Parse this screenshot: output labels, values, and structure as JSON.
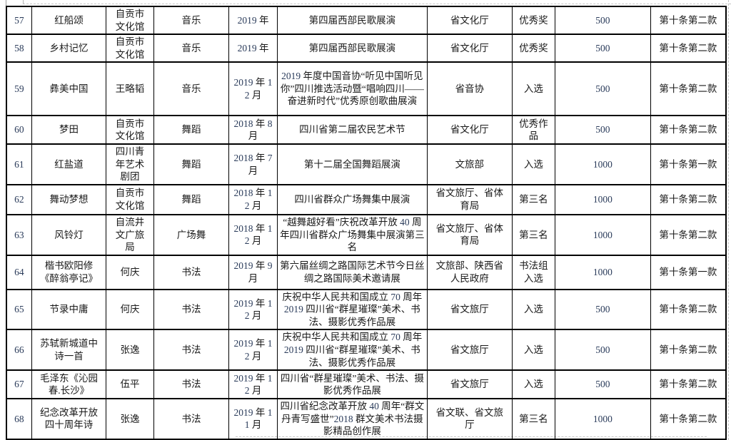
{
  "colors": {
    "table_border": "#000000",
    "text": "#1a1a1a",
    "digit_text": "#2a3b5a",
    "boundary_dash": "#c4c4c4"
  },
  "table": {
    "rows": [
      {
        "no": "57",
        "title": "红船颂",
        "author": "自贡市文化馆",
        "category": "音乐",
        "date": "2019 年",
        "event": "第四届西部民歌展演",
        "organizer": "省文化厅",
        "award": "优秀奖",
        "amount": "500",
        "clause": "第十条第二款"
      },
      {
        "no": "58",
        "title": "乡村记忆",
        "author": "自贡市文化馆",
        "category": "音乐",
        "date": "2019 年",
        "event": "第四届西部民歌展演",
        "organizer": "省文化厅",
        "award": "优秀奖",
        "amount": "500",
        "clause": "第十条第二款"
      },
      {
        "no": "59",
        "title": "彝美中国",
        "author": "王略韬",
        "category": "音乐",
        "date": "2019 年 12 月",
        "event": "2019 年度中国音协“听见中国听见你”四川推选活动暨“唱响四川——奋进新时代”优秀原创歌曲展演",
        "organizer": "省音协",
        "award": "入选",
        "amount": "500",
        "clause": "第十条第二款"
      },
      {
        "no": "60",
        "title": "梦田",
        "author": "自贡市文化馆",
        "category": "舞蹈",
        "date": "2018 年 8 月",
        "event": "四川省第二届农民艺术节",
        "organizer": "省文化厅",
        "award": "优秀作品",
        "amount": "500",
        "clause": "第十条第二款"
      },
      {
        "no": "61",
        "title": "红盐道",
        "author": "四川青年艺术剧团",
        "category": "舞蹈",
        "date": "2018 年 7 月",
        "event": "第十二届全国舞蹈展演",
        "organizer": "文旅部",
        "award": "入选",
        "amount": "1000",
        "clause": "第十条第一款"
      },
      {
        "no": "62",
        "title": "舞动梦想",
        "author": "自贡市文化馆",
        "category": "舞蹈",
        "date": "2018 年 12 月",
        "event": "四川省群众广场舞集中展演",
        "organizer": "省文旅厅、省体育局",
        "award": "第三名",
        "amount": "1000",
        "clause": "第十条第二款"
      },
      {
        "no": "63",
        "title": "风铃灯",
        "author": "自流井文广旅局",
        "category": "广场舞",
        "date": "2018 年 12 月",
        "event": "“越舞越好看”庆祝改革开放 40 周年四川省群众广场舞集中展演第三名",
        "organizer": "省文旅厅、省体育局",
        "award": "第三名",
        "amount": "1000",
        "clause": "第十条第二款"
      },
      {
        "no": "64",
        "title": "楷书欧阳修《醉翁亭记》",
        "author": "何庆",
        "category": "书法",
        "date": "2019 年 9 月",
        "event": "第六届丝绸之路国际艺术节今日丝绸之路国际美术邀请展",
        "organizer": "文旅部、陕西省人民政府",
        "award": "书法组入选",
        "amount": "1000",
        "clause": "第十条第一款"
      },
      {
        "no": "65",
        "title": "节录中庸",
        "author": "何庆",
        "category": "书法",
        "date": "2019 年 12 月",
        "event": "庆祝中华人民共和国成立 70 周年 2019 四川省“群星璀璨”美术、书法、摄影优秀作品展",
        "organizer": "省文旅厅",
        "award": "入选",
        "amount": "500",
        "clause": "第十条第二款"
      },
      {
        "no": "66",
        "title": "苏轼新城道中诗一首",
        "author": "张逸",
        "category": "书法",
        "date": "2019 年 12 月",
        "event": "庆祝中华人民共和国成立 70 周年 2019 四川省“群星璀璨”美术、书法、摄影优秀作品展",
        "organizer": "省文旅厅",
        "award": "入选",
        "amount": "500",
        "clause": "第十条第二款"
      },
      {
        "no": "67",
        "title": "毛泽东《沁园春.长沙》",
        "author": "伍平",
        "category": "书法",
        "date": "2019 年 12 月",
        "event": "四川省“群星璀璨”美术、书法、摄影优秀作品展",
        "organizer": "省文旅厅",
        "award": "入选",
        "amount": "500",
        "clause": "第十条第二款"
      },
      {
        "no": "68",
        "title": "纪念改革开放四十周年诗",
        "author": "张逸",
        "category": "书法",
        "date": "2019 年 11 月",
        "event": "四川省纪念改革开放 40 周年“群文丹青写盛世”2018 群文美术书法摄影精品创作展",
        "organizer": "省文联、省文旅厅",
        "award": "第三名",
        "amount": "1000",
        "clause": "第十条第二款"
      }
    ]
  }
}
